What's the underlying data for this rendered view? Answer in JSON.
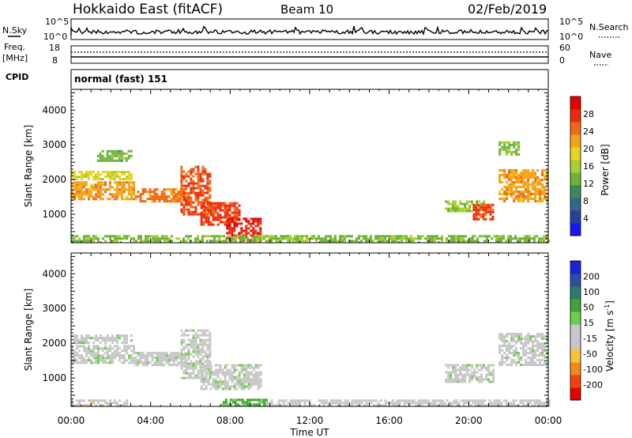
{
  "header": {
    "station": "Hokkaido East (fitACF)",
    "beam": "Beam 10",
    "date": "02/Feb/2019"
  },
  "meta_panels": {
    "nsky_label": "N.Sky",
    "nsky_top": "10^5",
    "nsky_bottom": "10^0",
    "nsearch_label": "N.Search",
    "nsearch_top": "10^5",
    "nsearch_bottom": "10^0",
    "freq_label": "Freq.",
    "freq_unit": "[MHz]",
    "freq_top": "18",
    "freq_bottom": "8",
    "nave_label": "Nave",
    "nave_top": "60",
    "nave_bottom": "0",
    "cpid_label": "CPID",
    "cpid_value": "normal (fast) 151"
  },
  "chart_data": [
    {
      "type": "heatmap",
      "title": "",
      "xlabel": "Time UT",
      "ylabel": "Slant Range [km]",
      "x_ticks": [
        "00:00",
        "04:00",
        "08:00",
        "12:00",
        "16:00",
        "20:00",
        "00:00"
      ],
      "xlim_hours": [
        0,
        24
      ],
      "ylim_km": [
        180,
        4600
      ],
      "y_ticks": [
        1000,
        2000,
        3000,
        4000
      ],
      "colorbar": {
        "label": "Power [dB]",
        "range": [
          0,
          32
        ],
        "tick_labels": [
          "4",
          "8",
          "12",
          "16",
          "20",
          "24",
          "28"
        ],
        "colors": [
          "#1515ff",
          "#2b3f9a",
          "#2f6a8a",
          "#3a8a55",
          "#6cb33a",
          "#a9cf2e",
          "#e8d421",
          "#f4a21a",
          "#f26a12",
          "#ee2b0c",
          "#e80000"
        ]
      },
      "regions": [
        {
          "t0": 0.0,
          "t1": 3.2,
          "r0": 1450,
          "r1": 1950,
          "value": 22
        },
        {
          "t0": 3.2,
          "t1": 5.8,
          "r0": 1400,
          "r1": 1750,
          "value": 24
        },
        {
          "t0": 5.5,
          "t1": 7.0,
          "r0": 1000,
          "r1": 2400,
          "value": 26
        },
        {
          "t0": 6.5,
          "t1": 8.5,
          "r0": 700,
          "r1": 1350,
          "value": 27
        },
        {
          "t0": 7.8,
          "t1": 9.5,
          "r0": 280,
          "r1": 900,
          "value": 29
        },
        {
          "t0": 0.0,
          "t1": 3.0,
          "r0": 2000,
          "r1": 2250,
          "value": 18
        },
        {
          "t0": 1.3,
          "t1": 3.0,
          "r0": 2550,
          "r1": 2850,
          "value": 13
        },
        {
          "t0": 0.0,
          "t1": 24.0,
          "r0": 230,
          "r1": 400,
          "value": 14
        },
        {
          "t0": 18.8,
          "t1": 20.8,
          "r0": 1100,
          "r1": 1400,
          "value": 15
        },
        {
          "t0": 20.2,
          "t1": 21.2,
          "r0": 850,
          "r1": 1300,
          "value": 27
        },
        {
          "t0": 21.5,
          "t1": 24.0,
          "r0": 1350,
          "r1": 2300,
          "value": 22
        },
        {
          "t0": 21.5,
          "t1": 22.5,
          "r0": 2700,
          "r1": 3100,
          "value": 14
        }
      ]
    },
    {
      "type": "heatmap",
      "title": "",
      "xlabel": "Time UT",
      "ylabel": "Slant Range [km]",
      "x_ticks": [
        "00:00",
        "04:00",
        "08:00",
        "12:00",
        "16:00",
        "20:00",
        "00:00"
      ],
      "xlim_hours": [
        0,
        24
      ],
      "ylim_km": [
        180,
        4600
      ],
      "y_ticks": [
        1000,
        2000,
        3000,
        4000
      ],
      "colorbar": {
        "label": "Velocity [m s^-1]",
        "range": [
          -250,
          250
        ],
        "tick_labels": [
          "200",
          "100",
          "50",
          "15",
          "-15",
          "-50",
          "-100",
          "-200"
        ],
        "colors": [
          "#e80000",
          "#f2420d",
          "#f5881a",
          "#f5c633",
          "#c8c8c8",
          "#c8c8c8",
          "#6cd04a",
          "#3fa23a",
          "#2f7a66",
          "#2a4fa3",
          "#1a22d8"
        ]
      },
      "regions": [
        {
          "t0": 0.0,
          "t1": 3.2,
          "r0": 1450,
          "r1": 1950,
          "value": 0
        },
        {
          "t0": 3.2,
          "t1": 5.8,
          "r0": 1400,
          "r1": 1750,
          "value": 0
        },
        {
          "t0": 5.5,
          "t1": 7.0,
          "r0": 1000,
          "r1": 2400,
          "value": 0
        },
        {
          "t0": 6.5,
          "t1": 9.5,
          "r0": 700,
          "r1": 1400,
          "value": 0
        },
        {
          "t0": 0.0,
          "t1": 3.0,
          "r0": 2000,
          "r1": 2250,
          "value": 0
        },
        {
          "t0": 0.0,
          "t1": 2.8,
          "r0": 230,
          "r1": 380,
          "value": -40
        },
        {
          "t0": 7.5,
          "t1": 9.8,
          "r0": 230,
          "r1": 400,
          "value": 80
        },
        {
          "t0": 9.8,
          "t1": 24.0,
          "r0": 230,
          "r1": 380,
          "value": -20
        },
        {
          "t0": 18.8,
          "t1": 21.2,
          "r0": 900,
          "r1": 1400,
          "value": 0
        },
        {
          "t0": 21.5,
          "t1": 24.0,
          "r0": 1350,
          "r1": 2300,
          "value": 0
        }
      ]
    }
  ]
}
